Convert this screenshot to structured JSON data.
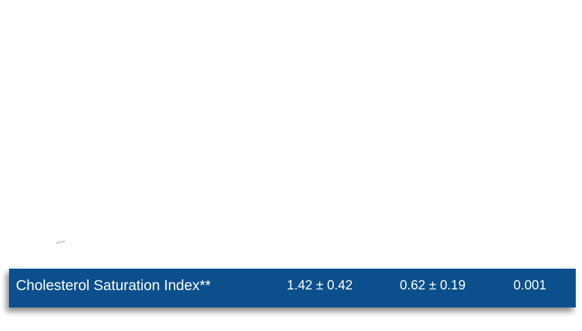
{
  "table": {
    "row": {
      "label": "Cholesterol Saturation Index**",
      "group1": "1.42  ± 0.42",
      "group2": "0.62 ± 0.19",
      "p_value": "0.001"
    },
    "colors": {
      "row_background": "#0b4f8c",
      "row_text": "#ffffff"
    }
  }
}
